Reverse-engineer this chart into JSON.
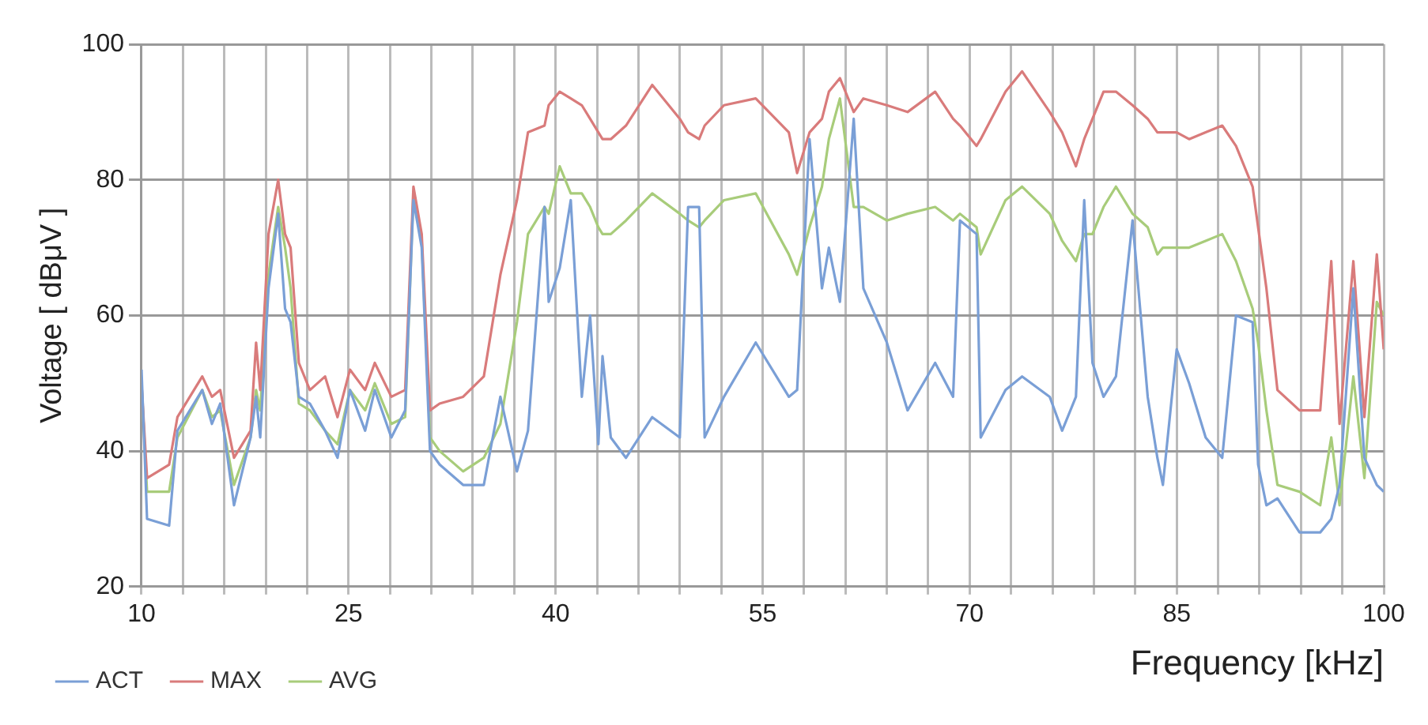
{
  "chart_data": {
    "type": "line",
    "xlabel": "Frequency [kHz]",
    "ylabel": "Voltage [ dBμV ]",
    "x": [
      10,
      10.4,
      12,
      12.6,
      14.4,
      15.1,
      15.7,
      16.7,
      17.9,
      18.3,
      18.6,
      19.2,
      19.9,
      20.4,
      20.8,
      21.4,
      22.2,
      23.3,
      24.2,
      25.1,
      26.2,
      26.9,
      28.1,
      29.1,
      29.7,
      30.3,
      30.9,
      31.6,
      33.3,
      34.8,
      36,
      37.2,
      38,
      39.2,
      39.5,
      40.3,
      41.1,
      41.9,
      42.5,
      43.1,
      43.4,
      44,
      45.1,
      47,
      49,
      49.6,
      50.4,
      50.8,
      52.2,
      54.5,
      56.9,
      57.5,
      58.4,
      59.3,
      59.8,
      60.6,
      61.6,
      62.3,
      64,
      65.5,
      67.5,
      68.8,
      69.3,
      70.5,
      70.8,
      72.6,
      73.8,
      75.8,
      76.7,
      77.7,
      78.3,
      78.9,
      79.7,
      80.6,
      81.8,
      82.9,
      83.6,
      84,
      85,
      85.9,
      87.1,
      88.3,
      89.3,
      90.5,
      90.9,
      91.5,
      92.3,
      93.9,
      95.4,
      96.2,
      96.8,
      97.8,
      98.6,
      99.5,
      100
    ],
    "series": [
      {
        "name": "ACT",
        "color": "#7a9fd6",
        "values": [
          52,
          30,
          29,
          43,
          49,
          44,
          47,
          32,
          42,
          48,
          42,
          64,
          75,
          61,
          59,
          48,
          47,
          43,
          39,
          49,
          43,
          49,
          42,
          46,
          77,
          70,
          40,
          38,
          35,
          35,
          48,
          37,
          43,
          76,
          62,
          67,
          77,
          48,
          60,
          41,
          54,
          42,
          39,
          45,
          42,
          76,
          76,
          42,
          48,
          56,
          48,
          49,
          86,
          64,
          70,
          62,
          89,
          64,
          56,
          46,
          53,
          48,
          74,
          72,
          42,
          49,
          51,
          48,
          43,
          48,
          77,
          53,
          48,
          51,
          74,
          48,
          39,
          35,
          55,
          50,
          42,
          39,
          60,
          59,
          38,
          32,
          33,
          28,
          28,
          30,
          35,
          64,
          39,
          35,
          34
        ]
      },
      {
        "name": "MAX",
        "color": "#d97b7b",
        "values": [
          50,
          36,
          38,
          45,
          51,
          48,
          49,
          39,
          43,
          56,
          49,
          72,
          80,
          72,
          70,
          53,
          49,
          51,
          45,
          52,
          49,
          53,
          48,
          49,
          79,
          72,
          46,
          47,
          48,
          51,
          66,
          77,
          87,
          88,
          91,
          93,
          92,
          91,
          89,
          87,
          86,
          86,
          88,
          94,
          89,
          87,
          86,
          88,
          91,
          92,
          87,
          81,
          87,
          89,
          93,
          95,
          90,
          92,
          91,
          90,
          93,
          89,
          88,
          85,
          86,
          93,
          96,
          90,
          87,
          82,
          86,
          89,
          93,
          93,
          91,
          89,
          87,
          87,
          87,
          86,
          87,
          88,
          85,
          79,
          73,
          64,
          49,
          46,
          46,
          68,
          44,
          68,
          45,
          69,
          55
        ]
      },
      {
        "name": "AVG",
        "color": "#a8cc7a",
        "values": [
          50,
          34,
          34,
          42,
          49,
          45,
          46,
          35,
          42,
          49,
          46,
          66,
          76,
          70,
          64,
          47,
          46,
          43,
          41,
          49,
          46,
          50,
          44,
          45,
          78,
          71,
          42,
          40,
          37,
          39,
          44,
          59,
          72,
          76,
          75,
          82,
          78,
          78,
          76,
          73,
          72,
          72,
          74,
          78,
          75,
          74,
          73,
          74,
          77,
          78,
          69,
          66,
          73,
          79,
          86,
          92,
          76,
          76,
          74,
          75,
          76,
          74,
          75,
          73,
          69,
          77,
          79,
          75,
          71,
          68,
          72,
          72,
          76,
          79,
          75,
          73,
          69,
          70,
          70,
          70,
          71,
          72,
          68,
          61,
          56,
          46,
          35,
          34,
          32,
          42,
          32,
          51,
          36,
          62,
          60
        ]
      }
    ],
    "xlim": [
      10,
      100
    ],
    "xticks": [
      10,
      {
        "value": 13,
        "label": null
      },
      {
        "value": 16,
        "label": null
      },
      {
        "value": 19,
        "label": null
      },
      {
        "value": 22,
        "label": null
      },
      25,
      {
        "value": 28,
        "label": null
      },
      {
        "value": 31,
        "label": null
      },
      {
        "value": 34,
        "label": null
      },
      {
        "value": 37,
        "label": null
      },
      40,
      {
        "value": 43,
        "label": null
      },
      {
        "value": 46,
        "label": null
      },
      {
        "value": 49,
        "label": null
      },
      {
        "value": 52,
        "label": null
      },
      55,
      {
        "value": 58,
        "label": null
      },
      {
        "value": 61,
        "label": null
      },
      {
        "value": 64,
        "label": null
      },
      {
        "value": 67,
        "label": null
      },
      70,
      {
        "value": 73,
        "label": null
      },
      {
        "value": 76,
        "label": null
      },
      {
        "value": 79,
        "label": null
      },
      {
        "value": 82,
        "label": null
      },
      85,
      {
        "value": 88,
        "label": null
      },
      {
        "value": 91,
        "label": null
      },
      {
        "value": 94,
        "label": null
      },
      {
        "value": 97,
        "label": null
      },
      100
    ],
    "ylim": [
      20,
      100
    ],
    "yticks": [
      20,
      40,
      60,
      80,
      100
    ],
    "grid": true,
    "legend": "bottom left",
    "marker": "none",
    "line_style": "solid"
  }
}
